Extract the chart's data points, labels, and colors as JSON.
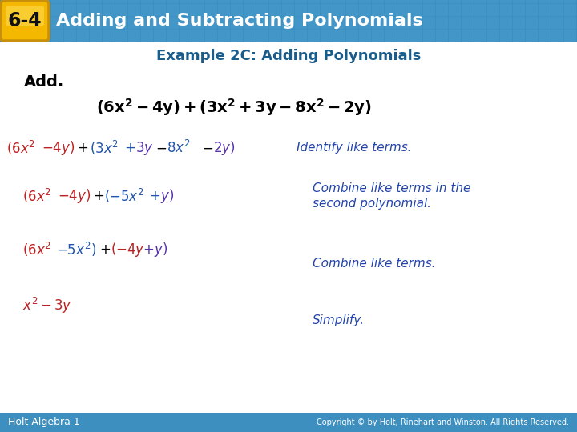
{
  "header_badge_text": "6-4",
  "header_title": "Adding and Subtracting Polynomials",
  "header_bg_color": "#3d8fc0",
  "header_badge_bg": "#f5b800",
  "header_badge_border": "#c8900a",
  "example_title": "Example 2C: Adding Polynomials",
  "example_title_color": "#1a5c8a",
  "add_label": "Add.",
  "bg_color": "#ffffff",
  "footer_text": "Holt Algebra 1",
  "copyright_text": "Copyright © by Holt, Rinehart and Winston. All Rights Reserved.",
  "footer_bg": "#3d8fc0",
  "footer_text_color": "#ffffff",
  "blue_color": "#2255aa",
  "red_color": "#bb2222",
  "purple_color": "#5533aa",
  "black_color": "#000000",
  "note_color": "#2244aa",
  "header_tile_color1": "#4da8d8",
  "header_tile_color2": "#3d98c8"
}
